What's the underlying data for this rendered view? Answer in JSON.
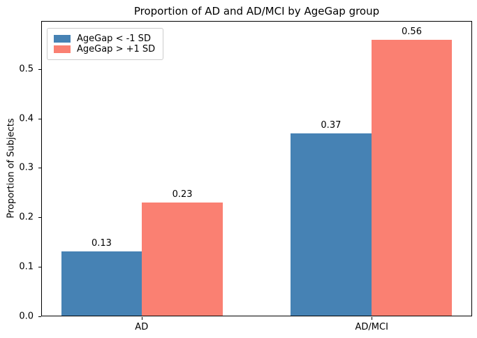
{
  "chart_data": {
    "type": "bar",
    "title": "Proportion of AD and AD/MCI by AgeGap group",
    "xlabel": "",
    "ylabel": "Proportion of Subjects",
    "categories": [
      "AD",
      "AD/MCI"
    ],
    "series": [
      {
        "name": "AgeGap < -1 SD",
        "color": "#4682B4",
        "values": [
          0.13,
          0.37
        ],
        "labels": [
          "0.13",
          "0.37"
        ]
      },
      {
        "name": "AgeGap > +1 SD",
        "color": "#FA8072",
        "values": [
          0.23,
          0.56
        ],
        "labels": [
          "0.23",
          "0.56"
        ]
      }
    ],
    "y_ticks": [
      "0.0",
      "0.1",
      "0.2",
      "0.3",
      "0.4",
      "0.5"
    ],
    "ylim": [
      0,
      0.597
    ],
    "grid": false,
    "legend_position": "upper left",
    "background_color": "#ffffff",
    "axis_color": "#000000"
  }
}
